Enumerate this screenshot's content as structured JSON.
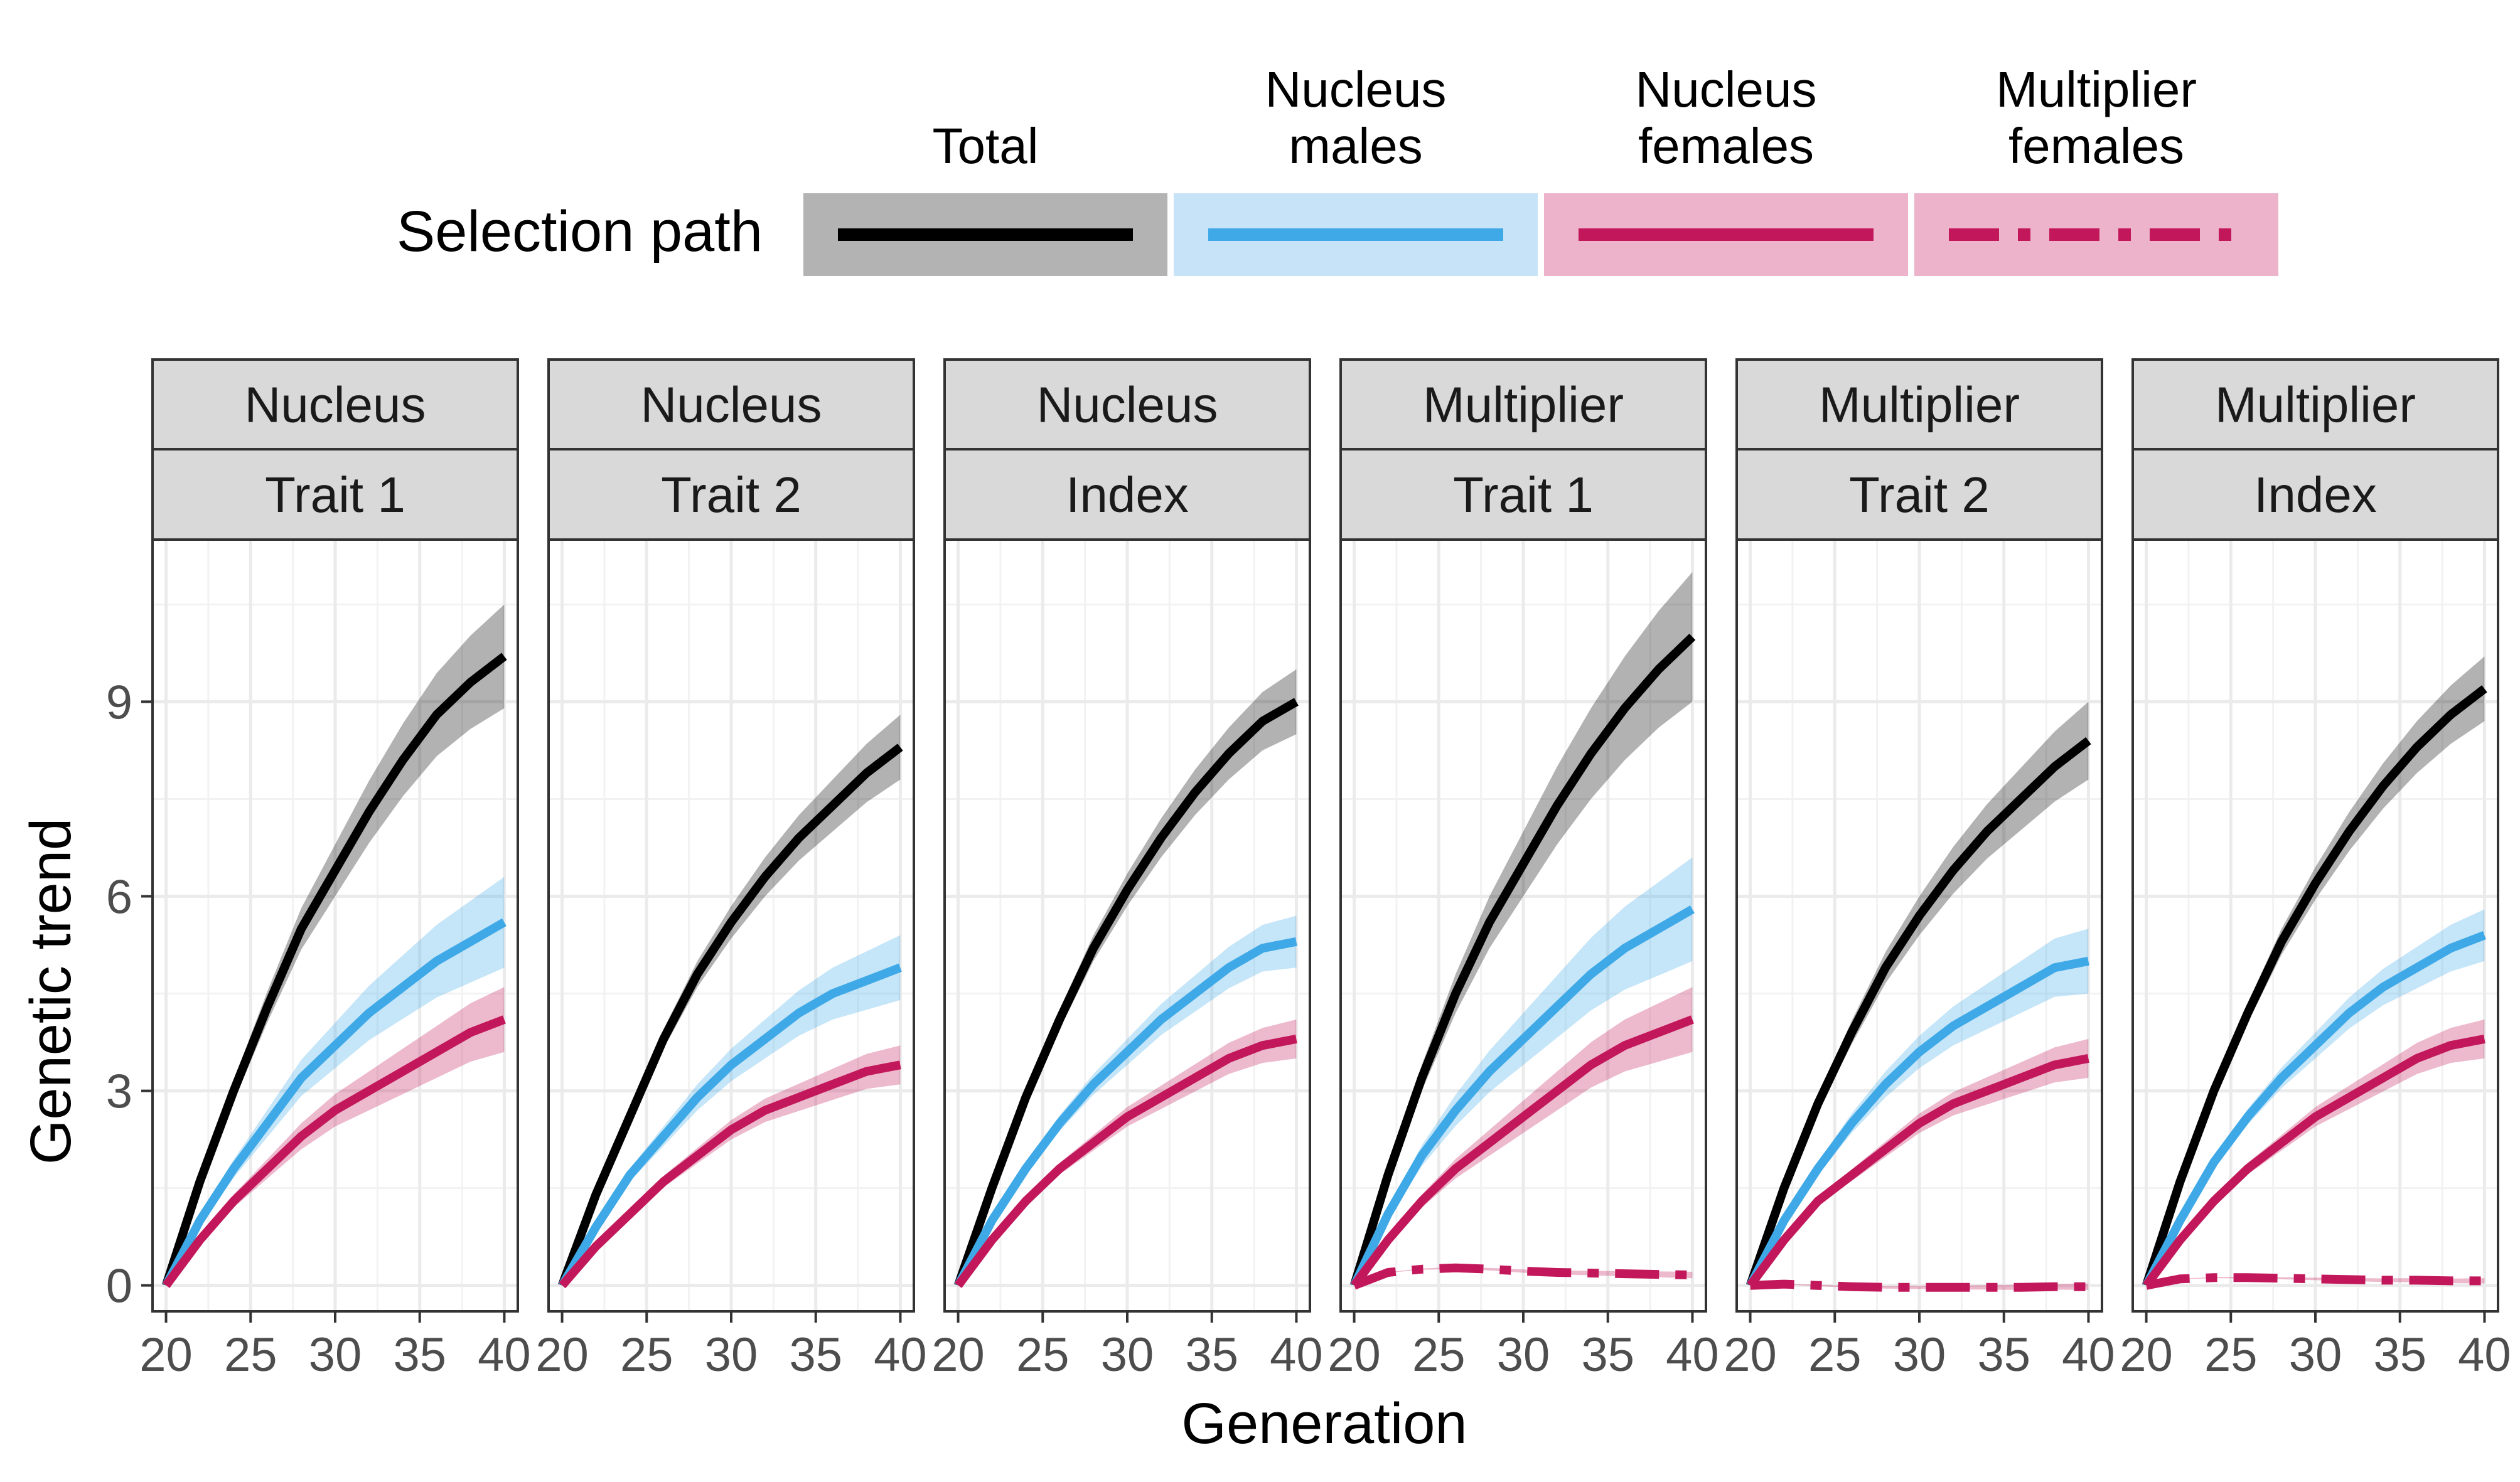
{
  "legend": {
    "title": "Selection path",
    "position": "top",
    "items": [
      {
        "label_lines": [
          "Total"
        ],
        "color": "#000000",
        "fill": "#b3b3b3",
        "dash": "solid"
      },
      {
        "label_lines": [
          "Nucleus",
          "males"
        ],
        "color": "#3fa9e8",
        "fill": "#c7e3f7",
        "dash": "solid"
      },
      {
        "label_lines": [
          "Nucleus",
          "females"
        ],
        "color": "#c2185b",
        "fill": "#ecb3cb",
        "dash": "solid"
      },
      {
        "label_lines": [
          "Multiplier",
          "females"
        ],
        "color": "#c2185b",
        "fill": "#ecb3cb",
        "dash": "dashed"
      }
    ]
  },
  "axes": {
    "xlabel": "Generation",
    "ylabel": "Genetic trend",
    "xlim": [
      19.2,
      40.8
    ],
    "ylim": [
      -0.4,
      11.5
    ],
    "xticks": [
      20,
      25,
      30,
      35,
      40
    ],
    "yticks": [
      0,
      3,
      6,
      9
    ],
    "grid": true
  },
  "chart_data": {
    "type": "line",
    "x": [
      20,
      22,
      24,
      26,
      28,
      30,
      32,
      34,
      36,
      38,
      40
    ],
    "panels": [
      {
        "strip": [
          "Nucleus",
          "Trait 1"
        ],
        "series": [
          {
            "path": "Total",
            "values": [
              0,
              1.6,
              3.0,
              4.3,
              5.5,
              6.4,
              7.3,
              8.1,
              8.8,
              9.3,
              9.7
            ],
            "band": 0.8
          },
          {
            "path": "Nucleus males",
            "values": [
              0,
              1.0,
              1.8,
              2.5,
              3.2,
              3.7,
              4.2,
              4.6,
              5.0,
              5.3,
              5.6
            ],
            "band": 0.7
          },
          {
            "path": "Nucleus females",
            "values": [
              0,
              0.7,
              1.3,
              1.8,
              2.3,
              2.7,
              3.0,
              3.3,
              3.6,
              3.9,
              4.1
            ],
            "band": 0.5
          }
        ]
      },
      {
        "strip": [
          "Nucleus",
          "Trait 2"
        ],
        "series": [
          {
            "path": "Total",
            "values": [
              0,
              1.4,
              2.6,
              3.8,
              4.8,
              5.6,
              6.3,
              6.9,
              7.4,
              7.9,
              8.3
            ],
            "band": 0.5
          },
          {
            "path": "Nucleus males",
            "values": [
              0,
              0.9,
              1.7,
              2.3,
              2.9,
              3.4,
              3.8,
              4.2,
              4.5,
              4.7,
              4.9
            ],
            "band": 0.5
          },
          {
            "path": "Nucleus females",
            "values": [
              0,
              0.6,
              1.1,
              1.6,
              2.0,
              2.4,
              2.7,
              2.9,
              3.1,
              3.3,
              3.4
            ],
            "band": 0.3
          }
        ]
      },
      {
        "strip": [
          "Nucleus",
          "Index"
        ],
        "series": [
          {
            "path": "Total",
            "values": [
              0,
              1.5,
              2.9,
              4.1,
              5.2,
              6.1,
              6.9,
              7.6,
              8.2,
              8.7,
              9.0
            ],
            "band": 0.5
          },
          {
            "path": "Nucleus males",
            "values": [
              0,
              1.0,
              1.8,
              2.5,
              3.1,
              3.6,
              4.1,
              4.5,
              4.9,
              5.2,
              5.3
            ],
            "band": 0.4
          },
          {
            "path": "Nucleus females",
            "values": [
              0,
              0.7,
              1.3,
              1.8,
              2.2,
              2.6,
              2.9,
              3.2,
              3.5,
              3.7,
              3.8
            ],
            "band": 0.3
          }
        ]
      },
      {
        "strip": [
          "Multiplier",
          "Trait 1"
        ],
        "series": [
          {
            "path": "Total",
            "values": [
              0,
              1.7,
              3.2,
              4.5,
              5.6,
              6.5,
              7.4,
              8.2,
              8.9,
              9.5,
              10.0
            ],
            "band": 1.0
          },
          {
            "path": "Nucleus males",
            "values": [
              0,
              1.1,
              2.0,
              2.7,
              3.3,
              3.8,
              4.3,
              4.8,
              5.2,
              5.5,
              5.8
            ],
            "band": 0.8
          },
          {
            "path": "Nucleus females",
            "values": [
              0,
              0.7,
              1.3,
              1.8,
              2.2,
              2.6,
              3.0,
              3.4,
              3.7,
              3.9,
              4.1
            ],
            "band": 0.5
          },
          {
            "path": "Multiplier females",
            "values": [
              0,
              0.2,
              0.25,
              0.27,
              0.25,
              0.22,
              0.2,
              0.19,
              0.18,
              0.17,
              0.16
            ],
            "band": 0.05
          }
        ]
      },
      {
        "strip": [
          "Multiplier",
          "Trait 2"
        ],
        "series": [
          {
            "path": "Total",
            "values": [
              0,
              1.5,
              2.8,
              3.9,
              4.9,
              5.7,
              6.4,
              7.0,
              7.5,
              8.0,
              8.4
            ],
            "band": 0.6
          },
          {
            "path": "Nucleus males",
            "values": [
              0,
              1.0,
              1.8,
              2.5,
              3.1,
              3.6,
              4.0,
              4.3,
              4.6,
              4.9,
              5.0
            ],
            "band": 0.5
          },
          {
            "path": "Nucleus females",
            "values": [
              0,
              0.7,
              1.3,
              1.7,
              2.1,
              2.5,
              2.8,
              3.0,
              3.2,
              3.4,
              3.5
            ],
            "band": 0.3
          },
          {
            "path": "Multiplier females",
            "values": [
              0,
              0.02,
              0.0,
              -0.02,
              -0.03,
              -0.03,
              -0.03,
              -0.03,
              -0.03,
              -0.02,
              -0.02
            ],
            "band": 0.05
          }
        ]
      },
      {
        "strip": [
          "Multiplier",
          "Index"
        ],
        "series": [
          {
            "path": "Total",
            "values": [
              0,
              1.6,
              3.0,
              4.2,
              5.3,
              6.2,
              7.0,
              7.7,
              8.3,
              8.8,
              9.2
            ],
            "band": 0.5
          },
          {
            "path": "Nucleus males",
            "values": [
              0,
              1.0,
              1.9,
              2.6,
              3.2,
              3.7,
              4.2,
              4.6,
              4.9,
              5.2,
              5.4
            ],
            "band": 0.4
          },
          {
            "path": "Nucleus females",
            "values": [
              0,
              0.7,
              1.3,
              1.8,
              2.2,
              2.6,
              2.9,
              3.2,
              3.5,
              3.7,
              3.8
            ],
            "band": 0.3
          },
          {
            "path": "Multiplier females",
            "values": [
              0,
              0.1,
              0.12,
              0.12,
              0.11,
              0.1,
              0.09,
              0.08,
              0.08,
              0.07,
              0.07
            ],
            "band": 0.04
          }
        ]
      }
    ]
  }
}
